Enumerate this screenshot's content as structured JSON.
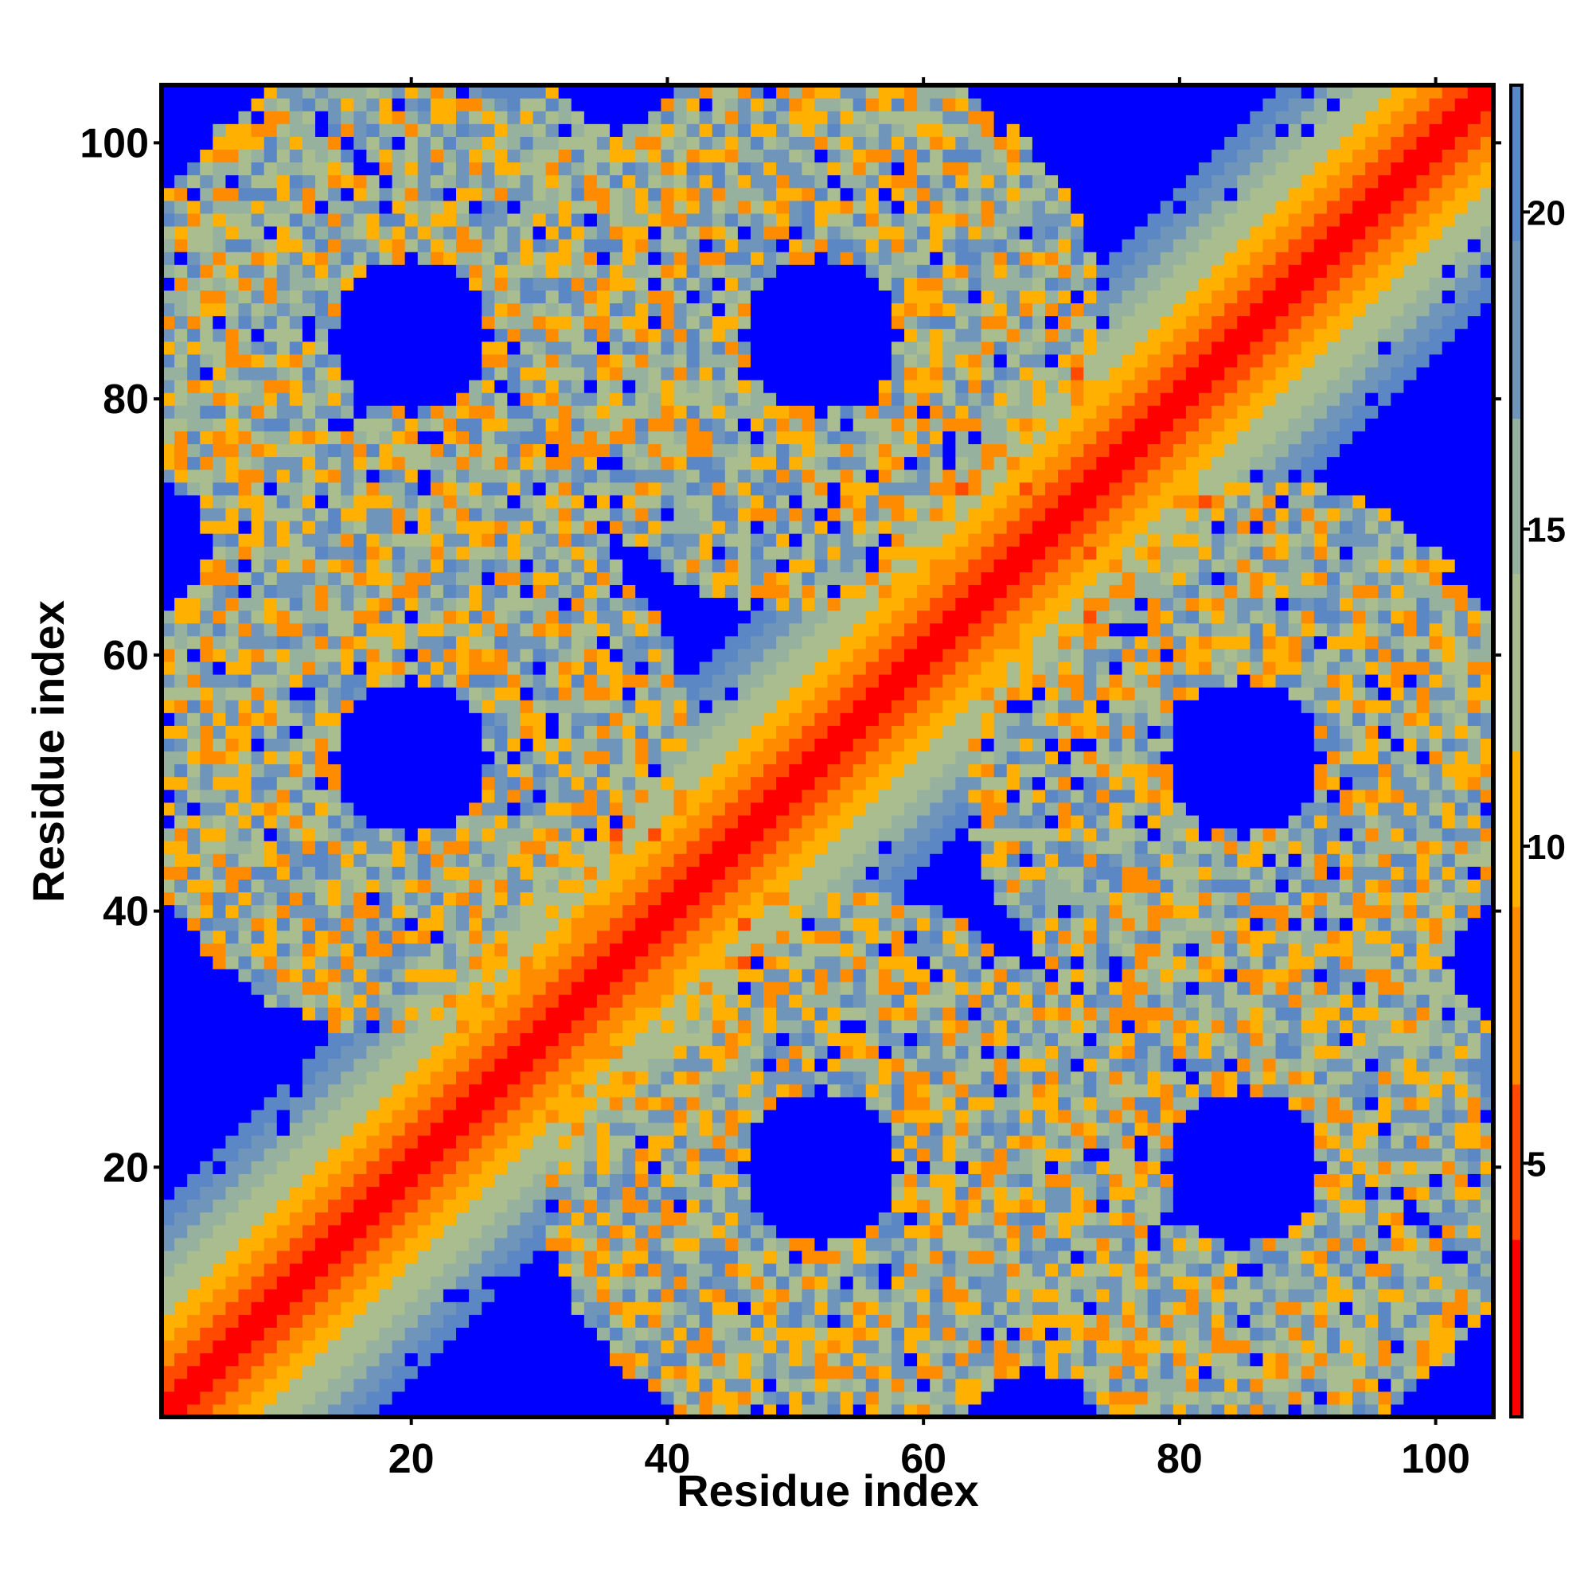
{
  "chart_data": {
    "type": "heatmap",
    "title": "",
    "xlabel": "Residue index",
    "ylabel": "Residue index",
    "n_residues": 104,
    "x_range": [
      1,
      104
    ],
    "y_range": [
      1,
      104
    ],
    "x_ticks": [
      "20",
      "40",
      "60",
      "80",
      "100"
    ],
    "y_ticks": [
      "20",
      "40",
      "60",
      "80",
      "100"
    ],
    "colorbar": {
      "label": "",
      "ticks": [
        "5",
        "10",
        "15",
        "20"
      ],
      "range": [
        1,
        22
      ],
      "cutoff_value": 22
    },
    "colormap": [
      "#ff0000",
      "#ff4a00",
      "#ff8c00",
      "#ffb000",
      "#a9bd8f",
      "#97b19f",
      "#6f96ba",
      "#5b87c4",
      "#0000ff"
    ],
    "description_values": {
      "diagonal": 1.5,
      "near_diagonal_band_width": 7,
      "domain_centers": [
        20,
        52,
        85
      ],
      "background": 22
    }
  }
}
